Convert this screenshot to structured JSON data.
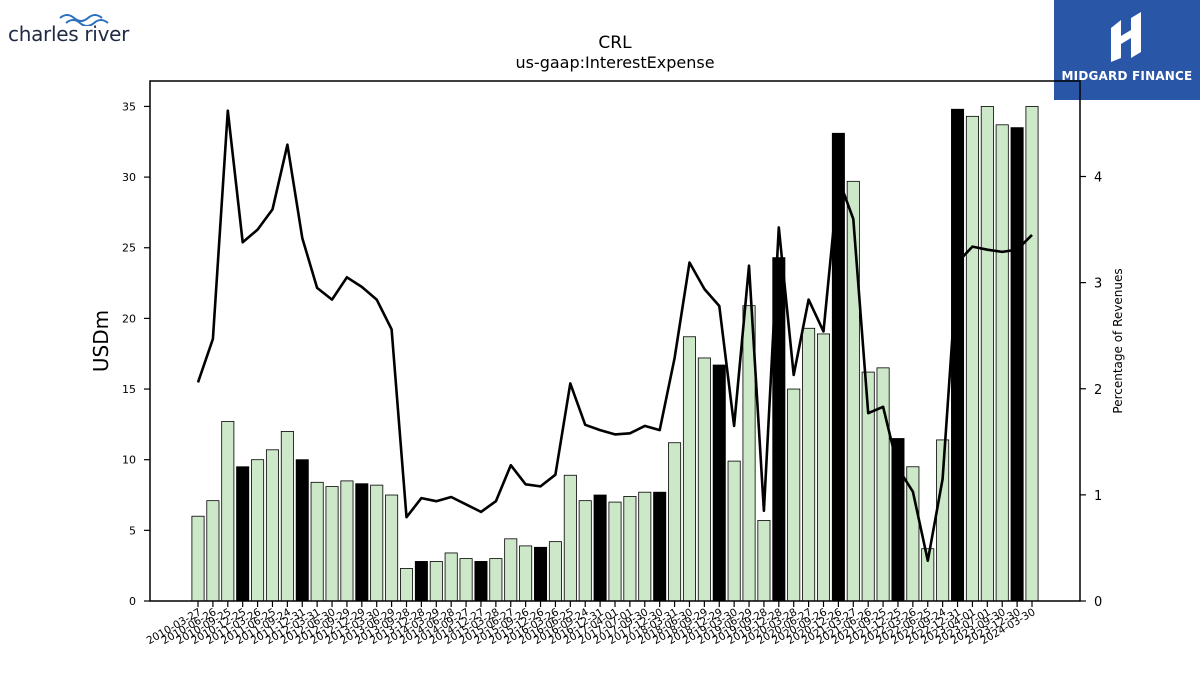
{
  "logos": {
    "left_text": "charles river",
    "right_text": "MIDGARD FINANCE"
  },
  "colors": {
    "bar_default": "#cde8c8",
    "bar_highlight": "#000000",
    "line": "#000000",
    "logo_right_bg": "#2a56a8"
  },
  "chart_data": {
    "type": "bar",
    "title": "CRL",
    "subtitle": "us-gaap:InterestExpense",
    "ylabel": "USDm",
    "y2label": "Percentage of Revenues",
    "ylim": [
      0,
      36.8
    ],
    "y2lim": [
      0,
      4.9
    ],
    "yticks": [
      0,
      5,
      10,
      15,
      20,
      25,
      30,
      35
    ],
    "y2ticks": [
      0,
      1,
      2,
      3,
      4
    ],
    "categories": [
      "2010-03-27",
      "2010-06-26",
      "2010-09-25",
      "2010-12-25",
      "2011-03-26",
      "2011-06-25",
      "2011-09-24",
      "2011-12-31",
      "2012-03-31",
      "2012-06-30",
      "2012-09-29",
      "2012-12-29",
      "2013-03-30",
      "2013-06-29",
      "2013-09-28",
      "2013-12-28",
      "2014-03-29",
      "2014-06-28",
      "2014-09-27",
      "2014-12-27",
      "2015-03-28",
      "2015-06-27",
      "2015-09-26",
      "2015-12-26",
      "2016-03-26",
      "2016-06-25",
      "2016-09-24",
      "2016-12-31",
      "2017-04-01",
      "2017-07-01",
      "2017-09-30",
      "2017-12-30",
      "2018-03-31",
      "2018-06-30",
      "2018-09-29",
      "2018-12-29",
      "2019-03-30",
      "2019-06-29",
      "2019-09-28",
      "2019-12-28",
      "2020-03-28",
      "2020-06-27",
      "2020-09-26",
      "2020-12-26",
      "2021-03-27",
      "2021-06-26",
      "2021-09-25",
      "2021-12-25",
      "2022-03-26",
      "2022-06-25",
      "2022-09-24",
      "2022-12-31",
      "2023-04-01",
      "2023-07-01",
      "2023-09-30",
      "2023-12-30",
      "2024-03-30"
    ],
    "series": [
      {
        "values": [
          6.0,
          7.1,
          12.7,
          9.5,
          10.0,
          10.7,
          12.0,
          10.0,
          8.4,
          8.1,
          8.5,
          8.3,
          8.2,
          7.5,
          2.3,
          2.8,
          2.8,
          3.4,
          3.0,
          2.8,
          3.0,
          4.4,
          3.9,
          3.8,
          4.2,
          8.9,
          7.1,
          7.5,
          7.0,
          7.4,
          7.7,
          7.7,
          11.2,
          18.7,
          17.2,
          16.7,
          9.9,
          20.9,
          5.7,
          24.3,
          15.0,
          19.3,
          18.9,
          33.1,
          29.7,
          16.2,
          16.5,
          11.5,
          9.5,
          3.7,
          11.4,
          34.8,
          34.3,
          35.0,
          33.7,
          33.5,
          35.0
        ]
      },
      {
        "values": [
          2.06,
          2.47,
          4.62,
          3.38,
          3.5,
          3.69,
          4.3,
          3.42,
          2.95,
          2.84,
          3.05,
          2.96,
          2.84,
          2.56,
          0.79,
          0.97,
          0.94,
          0.98,
          0.91,
          0.84,
          0.94,
          1.28,
          1.1,
          1.08,
          1.19,
          2.05,
          1.66,
          1.61,
          1.57,
          1.58,
          1.65,
          1.61,
          2.29,
          3.19,
          2.94,
          2.78,
          1.65,
          3.16,
          0.85,
          3.52,
          2.13,
          2.84,
          2.54,
          3.98,
          3.6,
          1.77,
          1.83,
          1.25,
          1.03,
          0.38,
          1.15,
          3.19,
          3.34,
          3.31,
          3.29,
          3.31,
          3.45
        ]
      }
    ],
    "highlight_indices": [
      3,
      7,
      11,
      15,
      19,
      23,
      27,
      31,
      35,
      39,
      43,
      47,
      51,
      55
    ]
  }
}
